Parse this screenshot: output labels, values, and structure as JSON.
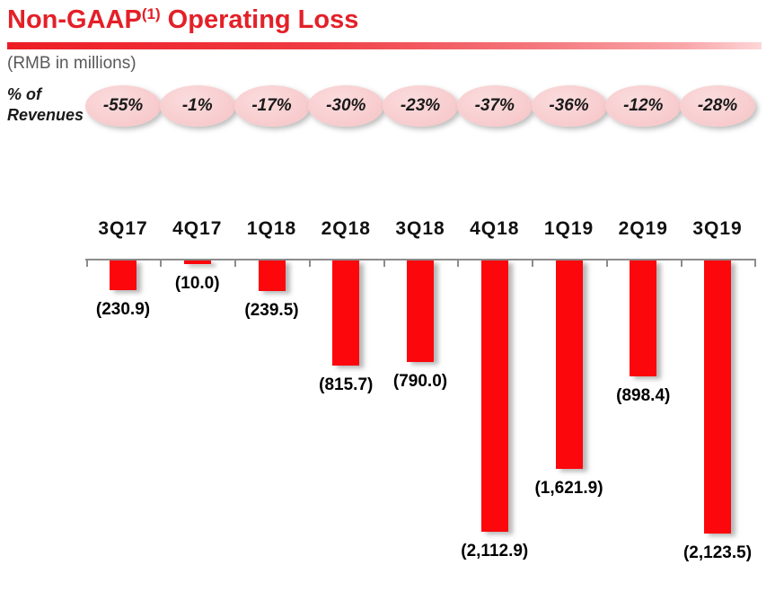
{
  "header": {
    "title_prefix": "Non-GAAP",
    "title_sup": "(1)",
    "title_suffix": " Operating Loss",
    "subtitle": "(RMB in millions)",
    "accent_color": "#e32028"
  },
  "pct_row": {
    "label": "% of Revenues"
  },
  "chart_data": {
    "type": "bar",
    "title": "Non-GAAP(1) Operating Loss",
    "unit_note": "(RMB in millions)",
    "categories": [
      "3Q17",
      "4Q17",
      "1Q18",
      "2Q18",
      "3Q18",
      "4Q18",
      "1Q19",
      "2Q19",
      "3Q19"
    ],
    "values": [
      -230.9,
      -10.0,
      -239.5,
      -815.7,
      -790.0,
      -2112.9,
      -1621.9,
      -898.4,
      -2123.5
    ],
    "value_labels": [
      "(230.9)",
      "(10.0)",
      "(239.5)",
      "(815.7)",
      "(790.0)",
      "(2,112.9)",
      "(1,621.9)",
      "(898.4)",
      "(2,123.5)"
    ],
    "pct_of_revenues": [
      "-55%",
      "-1%",
      "-17%",
      "-30%",
      "-23%",
      "-37%",
      "-36%",
      "-12%",
      "-28%"
    ],
    "bar_color": "#fb070c",
    "axis_color": "#8c8c8c",
    "oval_color": "#f8cdcf",
    "ylim": [
      -2300,
      0
    ],
    "baseline": 0,
    "grid": false,
    "legend": false
  }
}
